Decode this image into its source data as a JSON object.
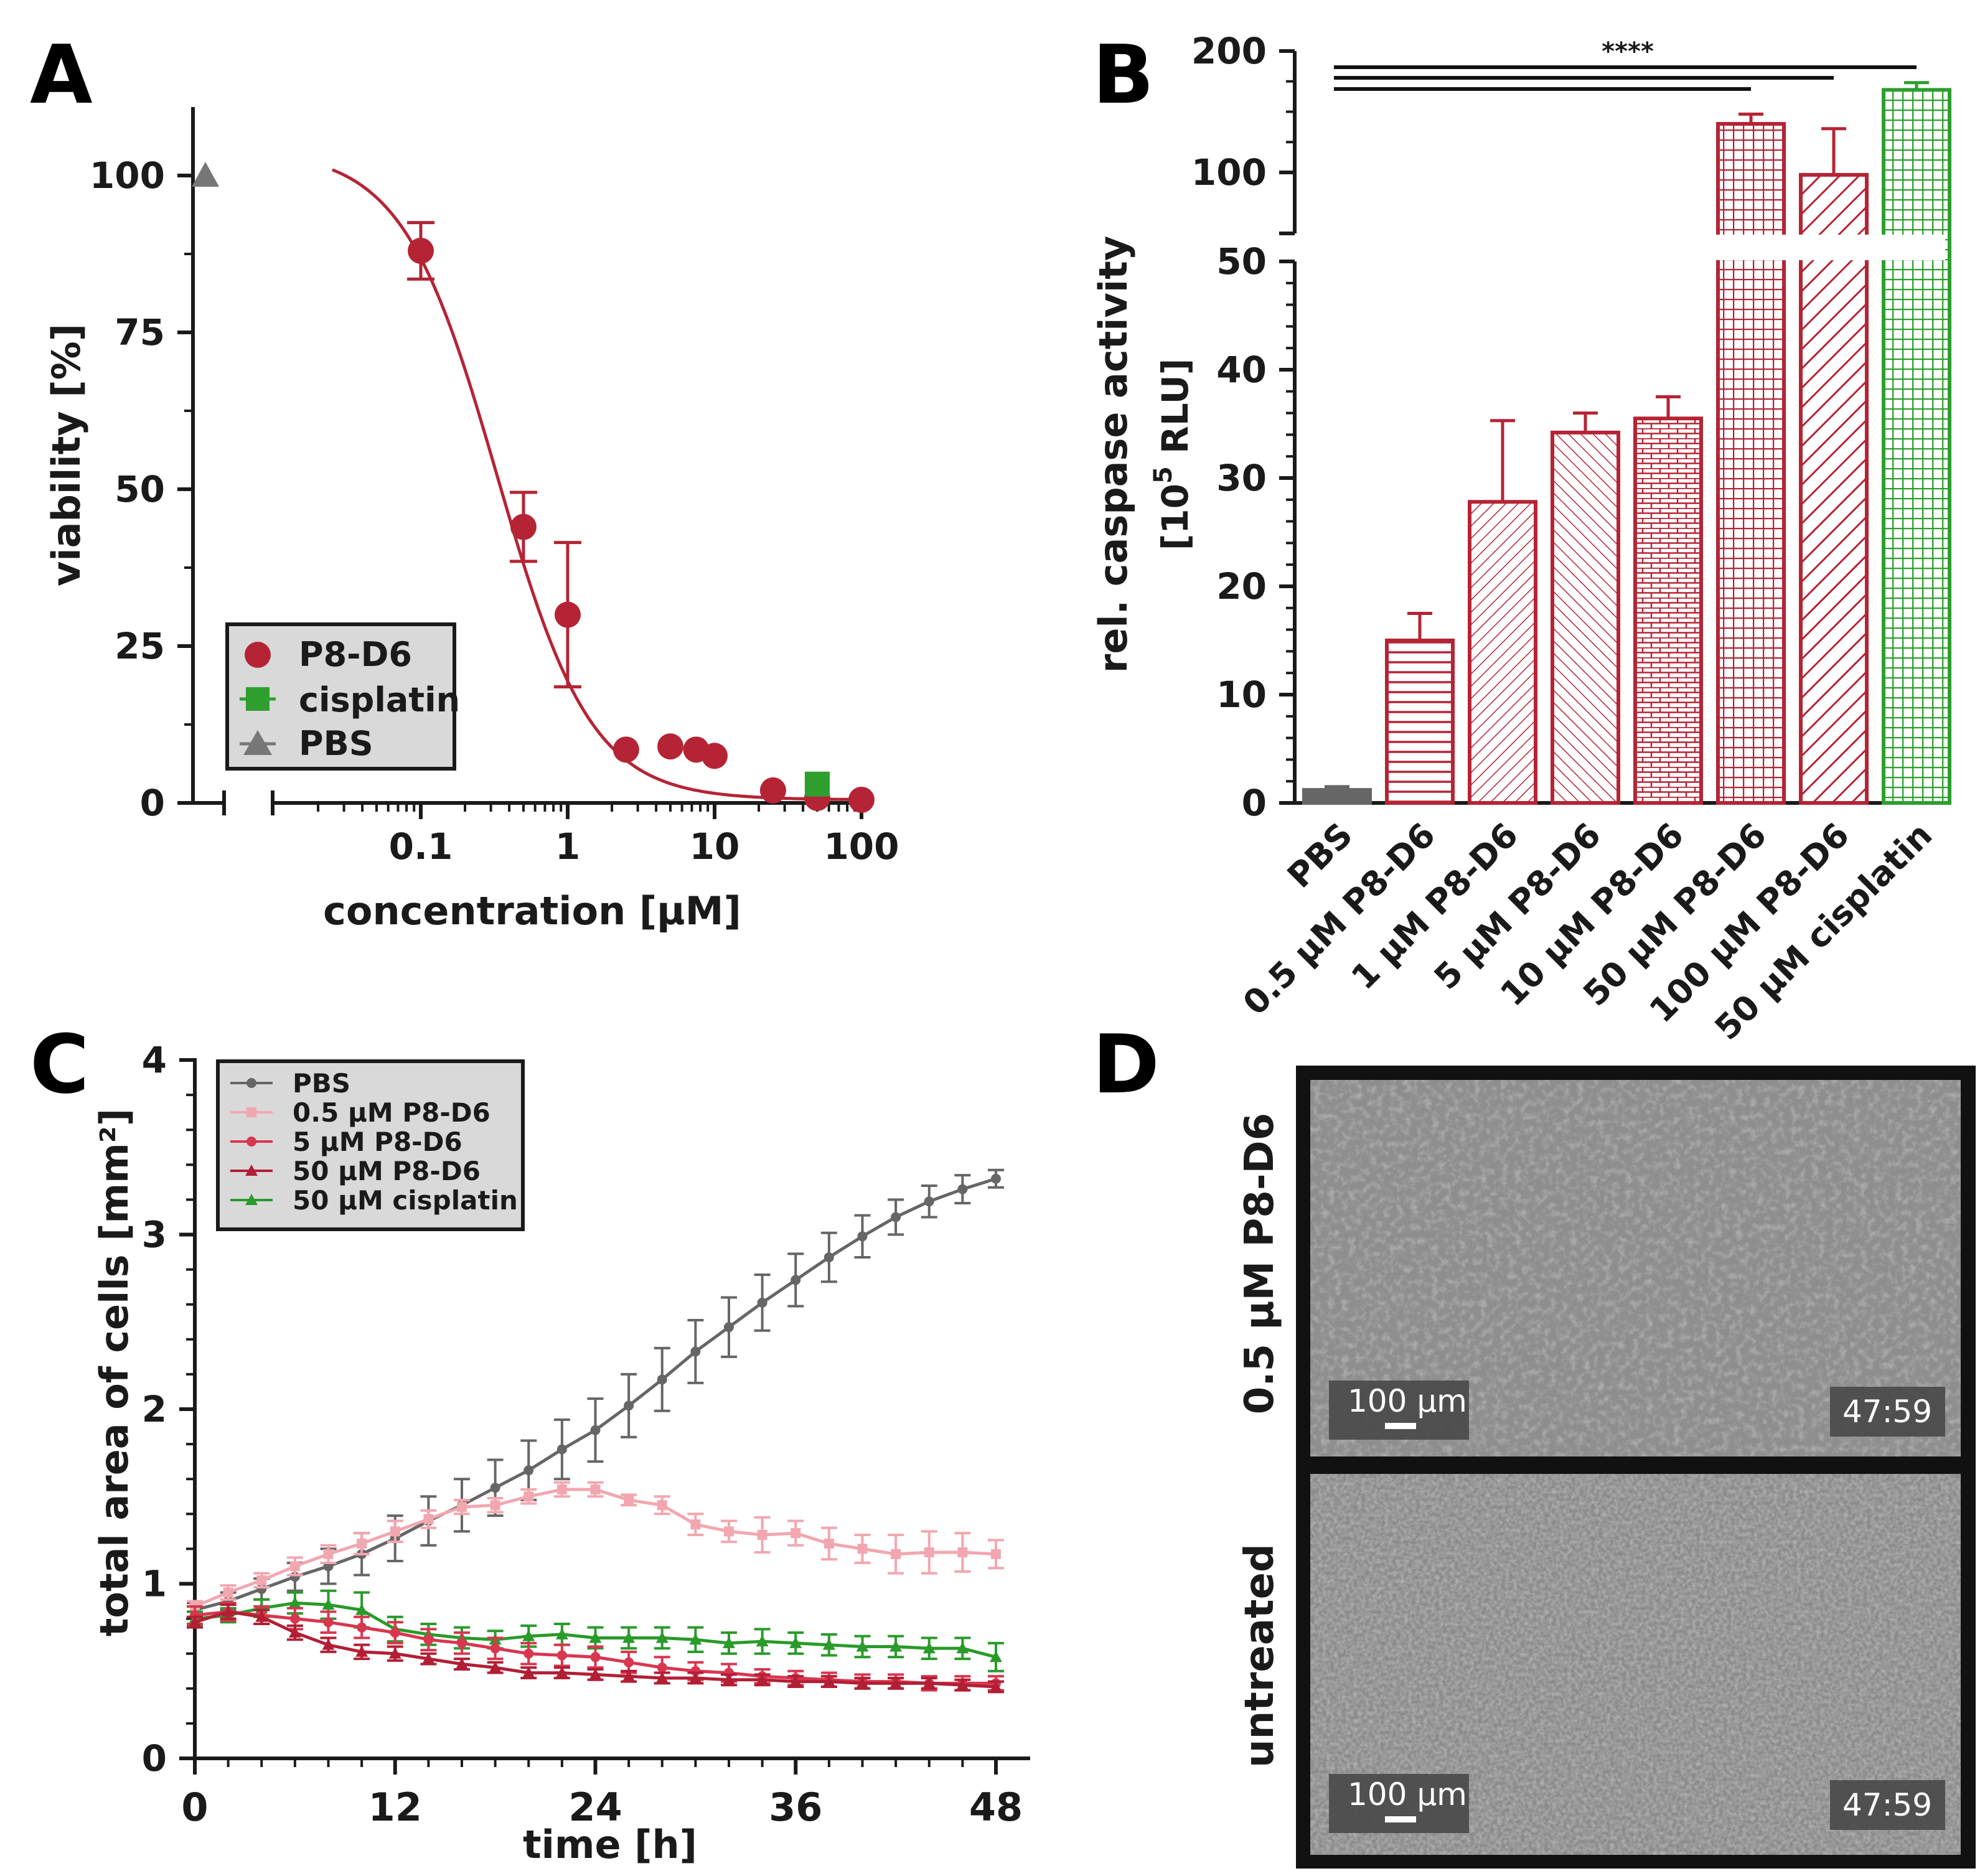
{
  "colors": {
    "p8d6": "#b52435",
    "cisplatin": "#2e9e2e",
    "pbs": "#777777",
    "pbs_dark": "#666666",
    "p8d6_05": "#f2a7b0",
    "p8d6_5": "#d9364f",
    "p8d6_50": "#b21f35",
    "cis_line": "#2a9a2a",
    "black": "#1a1a1a"
  },
  "panels": {
    "A": "A",
    "B": "B",
    "C": "C",
    "D": "D"
  },
  "chart_data": [
    {
      "id": "A",
      "type": "scatter",
      "title": "",
      "xlabel": "concentration [µM]",
      "ylabel": "viability [%]",
      "xscale": "log",
      "xlim": [
        0.01,
        130
      ],
      "ylim": [
        0,
        110
      ],
      "xticks": [
        {
          "value": 0.1,
          "label": "0.1"
        },
        {
          "value": 1,
          "label": "1"
        },
        {
          "value": 10,
          "label": "10"
        },
        {
          "value": 100,
          "label": "100"
        }
      ],
      "yticks": [
        {
          "value": 0,
          "label": "0"
        },
        {
          "value": 25,
          "label": "25"
        },
        {
          "value": 50,
          "label": "50"
        },
        {
          "value": 75,
          "label": "75"
        },
        {
          "value": 100,
          "label": "100"
        }
      ],
      "legend": {
        "placement": "bottom-left",
        "entries": [
          {
            "label": "P8-D6",
            "marker": "circle",
            "color_key": "p8d6"
          },
          {
            "label": "cisplatin",
            "marker": "square",
            "color_key": "cisplatin"
          },
          {
            "label": "PBS",
            "marker": "triangle",
            "color_key": "pbs"
          }
        ]
      },
      "series": [
        {
          "name": "P8-D6",
          "marker": "circle",
          "points": [
            {
              "x": 0.1,
              "y": 88,
              "err": 4.5
            },
            {
              "x": 0.5,
              "y": 44,
              "err": 5.5
            },
            {
              "x": 1,
              "y": 30,
              "err": 11.5
            },
            {
              "x": 2.5,
              "y": 8.5,
              "err": 0
            },
            {
              "x": 5,
              "y": 9,
              "err": 0
            },
            {
              "x": 7.5,
              "y": 8.5,
              "err": 0
            },
            {
              "x": 10,
              "y": 7.5,
              "err": 0
            },
            {
              "x": 25,
              "y": 2,
              "err": 0
            },
            {
              "x": 50,
              "y": 0.8,
              "err": 0
            },
            {
              "x": 100,
              "y": 0.5,
              "err": 0
            }
          ]
        },
        {
          "name": "cisplatin",
          "marker": "square",
          "points": [
            {
              "x": 50,
              "y": 3,
              "err": 0
            }
          ]
        },
        {
          "name": "PBS",
          "marker": "triangle",
          "points": [
            {
              "x": "control",
              "y": 100,
              "err": 0
            }
          ]
        }
      ],
      "fit": {
        "top": 104,
        "bottom": 0.5,
        "ic50": 0.33,
        "hill": 1.35
      }
    },
    {
      "id": "B",
      "type": "bar",
      "title": "",
      "ylabel": "rel. caspase activity",
      "ylabel_line2_prefix": "[10",
      "ylabel_line2_sup": "5",
      "ylabel_line2_suffix": " RLU]",
      "ylim_lower": [
        0,
        50
      ],
      "ylim_upper": [
        50,
        200
      ],
      "yticks_lower": [
        {
          "value": 0,
          "label": "0"
        },
        {
          "value": 10,
          "label": "10"
        },
        {
          "value": 20,
          "label": "20"
        },
        {
          "value": 30,
          "label": "30"
        },
        {
          "value": 40,
          "label": "40"
        },
        {
          "value": 50,
          "label": "50"
        }
      ],
      "yticks_upper": [
        {
          "value": 100,
          "label": "100"
        },
        {
          "value": 200,
          "label": "200"
        }
      ],
      "categories": [
        "PBS",
        "0.5 µM P8-D6",
        "1 µM P8-D6",
        "5 µM P8-D6",
        "10 µM P8-D6",
        "50 µM P8-D6",
        "100 µM P8-D6",
        "50 µM cisplatin"
      ],
      "values": [
        1.2,
        15,
        27.8,
        34.2,
        35.5,
        140,
        98,
        168
      ],
      "errors": [
        0.3,
        2.5,
        7.5,
        1.8,
        2.0,
        8,
        38,
        6
      ],
      "patterns": [
        "solid",
        "hlines",
        "diag-fine",
        "diag-right",
        "cross-diag",
        "grid",
        "diag-bold",
        "grid"
      ],
      "bar_colors": [
        "pbs_dark",
        "p8d6",
        "p8d6",
        "p8d6",
        "p8d6",
        "p8d6",
        "p8d6",
        "cisplatin"
      ],
      "significance": {
        "label": "****",
        "from": 0,
        "to": [
          5,
          6,
          7
        ]
      }
    },
    {
      "id": "C",
      "type": "line",
      "title": "",
      "xlabel": "time [h]",
      "ylabel": "total area of cells [mm²]",
      "xlim": [
        0,
        50
      ],
      "ylim": [
        0,
        4
      ],
      "xticks": [
        {
          "value": 0,
          "label": "0"
        },
        {
          "value": 12,
          "label": "12"
        },
        {
          "value": 24,
          "label": "24"
        },
        {
          "value": 36,
          "label": "36"
        },
        {
          "value": 48,
          "label": "48"
        }
      ],
      "yticks": [
        {
          "value": 0,
          "label": "0"
        },
        {
          "value": 1,
          "label": "1"
        },
        {
          "value": 2,
          "label": "2"
        },
        {
          "value": 3,
          "label": "3"
        },
        {
          "value": 4,
          "label": "4"
        }
      ],
      "x": [
        0,
        2,
        4,
        6,
        8,
        10,
        12,
        14,
        16,
        18,
        20,
        22,
        24,
        26,
        28,
        30,
        32,
        34,
        36,
        38,
        40,
        42,
        44,
        46,
        48
      ],
      "legend": {
        "placement": "top-left"
      },
      "series": [
        {
          "name": "PBS",
          "color_key": "pbs_dark",
          "marker": "circle",
          "values": [
            0.85,
            0.9,
            0.97,
            1.04,
            1.1,
            1.17,
            1.26,
            1.36,
            1.45,
            1.55,
            1.65,
            1.77,
            1.88,
            2.02,
            2.17,
            2.33,
            2.47,
            2.61,
            2.74,
            2.87,
            2.99,
            3.1,
            3.19,
            3.26,
            3.32
          ],
          "errors": [
            0.04,
            0.05,
            0.06,
            0.08,
            0.1,
            0.12,
            0.13,
            0.14,
            0.15,
            0.16,
            0.17,
            0.17,
            0.18,
            0.18,
            0.18,
            0.18,
            0.17,
            0.16,
            0.15,
            0.14,
            0.12,
            0.1,
            0.09,
            0.08,
            0.05
          ]
        },
        {
          "name": "0.5 µM P8-D6",
          "color_key": "p8d6_05",
          "marker": "square",
          "values": [
            0.87,
            0.95,
            1.02,
            1.1,
            1.17,
            1.23,
            1.3,
            1.37,
            1.44,
            1.45,
            1.5,
            1.54,
            1.54,
            1.48,
            1.45,
            1.34,
            1.3,
            1.28,
            1.29,
            1.23,
            1.2,
            1.17,
            1.18,
            1.18,
            1.17
          ],
          "errors": [
            0.03,
            0.04,
            0.04,
            0.05,
            0.05,
            0.06,
            0.06,
            0.05,
            0.04,
            0.04,
            0.04,
            0.04,
            0.04,
            0.03,
            0.05,
            0.06,
            0.06,
            0.1,
            0.07,
            0.09,
            0.08,
            0.11,
            0.12,
            0.11,
            0.08
          ]
        },
        {
          "name": "5 µM P8-D6",
          "color_key": "p8d6_5",
          "marker": "circle",
          "values": [
            0.82,
            0.84,
            0.82,
            0.8,
            0.78,
            0.75,
            0.72,
            0.68,
            0.66,
            0.63,
            0.6,
            0.59,
            0.58,
            0.55,
            0.52,
            0.5,
            0.49,
            0.47,
            0.46,
            0.45,
            0.44,
            0.44,
            0.43,
            0.43,
            0.43
          ],
          "errors": [
            0.05,
            0.05,
            0.05,
            0.06,
            0.06,
            0.06,
            0.06,
            0.06,
            0.06,
            0.06,
            0.06,
            0.06,
            0.06,
            0.06,
            0.06,
            0.05,
            0.05,
            0.04,
            0.04,
            0.04,
            0.04,
            0.04,
            0.04,
            0.04,
            0.04
          ]
        },
        {
          "name": "50 µM P8-D6",
          "color_key": "p8d6_50",
          "marker": "triangle",
          "values": [
            0.78,
            0.84,
            0.81,
            0.72,
            0.65,
            0.61,
            0.6,
            0.57,
            0.54,
            0.52,
            0.49,
            0.49,
            0.48,
            0.47,
            0.46,
            0.46,
            0.45,
            0.45,
            0.44,
            0.44,
            0.43,
            0.43,
            0.43,
            0.42,
            0.41
          ],
          "errors": [
            0.03,
            0.04,
            0.04,
            0.04,
            0.04,
            0.04,
            0.04,
            0.03,
            0.03,
            0.03,
            0.03,
            0.03,
            0.03,
            0.03,
            0.03,
            0.03,
            0.03,
            0.03,
            0.03,
            0.03,
            0.03,
            0.03,
            0.03,
            0.03,
            0.03
          ]
        },
        {
          "name": "50 µM cisplatin",
          "color_key": "cis_line",
          "marker": "triangle",
          "values": [
            0.8,
            0.82,
            0.86,
            0.89,
            0.88,
            0.85,
            0.74,
            0.71,
            0.69,
            0.68,
            0.7,
            0.71,
            0.69,
            0.69,
            0.69,
            0.68,
            0.66,
            0.67,
            0.66,
            0.65,
            0.64,
            0.64,
            0.63,
            0.63,
            0.58
          ],
          "errors": [
            0.04,
            0.04,
            0.05,
            0.06,
            0.08,
            0.1,
            0.07,
            0.06,
            0.06,
            0.05,
            0.06,
            0.06,
            0.06,
            0.06,
            0.06,
            0.07,
            0.06,
            0.07,
            0.06,
            0.06,
            0.06,
            0.06,
            0.06,
            0.06,
            0.08
          ]
        }
      ]
    }
  ],
  "panel_D": {
    "rows": [
      {
        "label": "0.5 µM P8-D6",
        "scalebar": "100 µm",
        "timestamp": "47:59"
      },
      {
        "label": "untreated",
        "scalebar": "100 µm",
        "timestamp": "47:59"
      }
    ]
  }
}
